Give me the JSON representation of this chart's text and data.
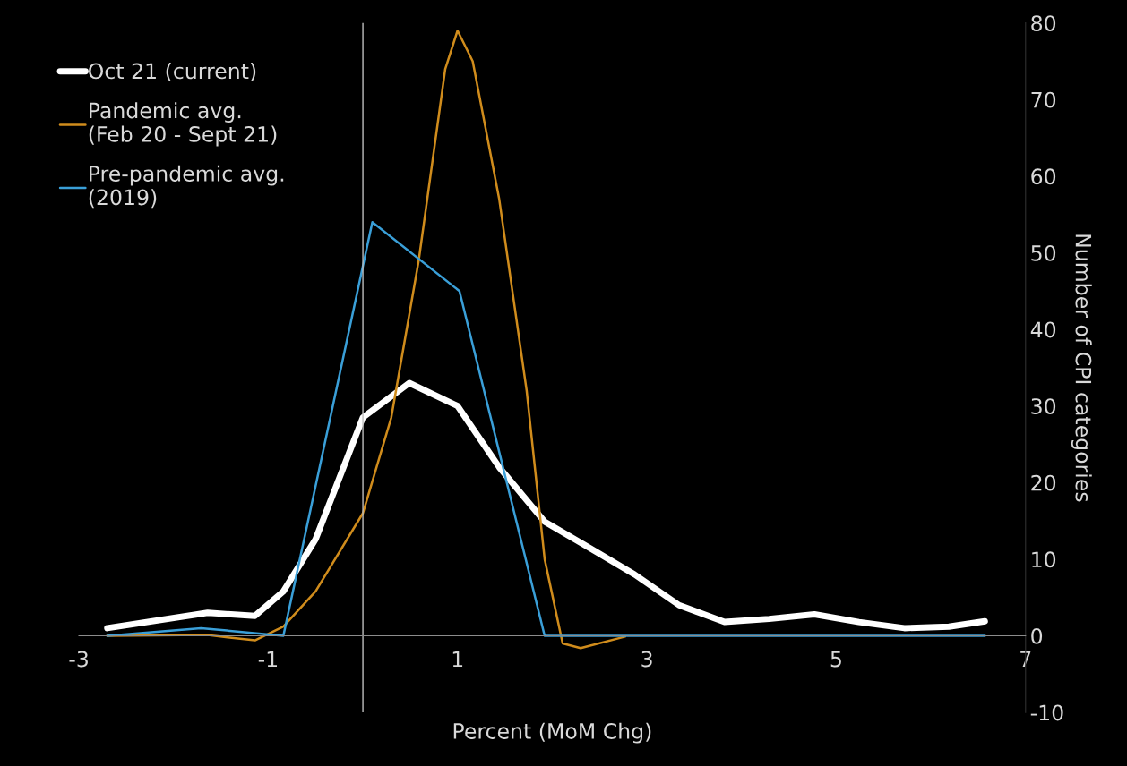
{
  "chart_data": {
    "type": "line",
    "xlabel": "Percent (MoM Chg)",
    "ylabel": "Number of CPI categories",
    "xlim": [
      -3,
      7
    ],
    "xticks": [
      -3,
      -1,
      1,
      3,
      5,
      7
    ],
    "ylim": [
      -10,
      80
    ],
    "yticks": [
      -10,
      0,
      10,
      20,
      30,
      40,
      50,
      60,
      70,
      80
    ],
    "grid": false,
    "legend": "top left",
    "ref_lines": [
      {
        "axis": "x",
        "value": 0,
        "color": "#bfbfbf"
      }
    ],
    "series": [
      {
        "name": "Oct 21 (current)",
        "color": "#ffffff",
        "x": [
          -2.7,
          -1.64,
          -1.14,
          -0.84,
          -0.5,
          0,
          0.49,
          1.0,
          1.44,
          1.92,
          2.39,
          2.87,
          3.34,
          3.82,
          4.29,
          4.77,
          5.24,
          5.72,
          6.19,
          6.57
        ],
        "values": [
          1.0,
          3.0,
          2.6,
          5.8,
          12.6,
          28.5,
          33,
          30,
          22,
          14.9,
          11.5,
          8,
          4,
          1.8,
          2.2,
          2.8,
          1.8,
          1.0,
          1.2,
          1.9
        ]
      },
      {
        "name": "Pandemic avg.\n(Feb 20 - Sept 21)",
        "color": "#d08c1c",
        "x": [
          -2.7,
          -1.64,
          -1.14,
          -0.84,
          -0.5,
          0,
          0.3,
          0.59,
          0.87,
          1.0,
          1.16,
          1.44,
          1.73,
          1.92,
          2.11,
          2.3,
          2.77
        ],
        "values": [
          0,
          0.1,
          -0.6,
          1.2,
          5.8,
          16,
          28.5,
          49,
          74,
          79,
          75,
          57,
          32,
          10,
          -1,
          -1.6,
          -0.1
        ]
      },
      {
        "name": "Pre-pandemic avg.\n(2019)",
        "color": "#3a9fd8",
        "x": [
          -2.7,
          -1.71,
          -0.84,
          0.1,
          1.02,
          1.92,
          6.57
        ],
        "values": [
          0,
          1,
          0,
          54,
          45,
          0,
          0
        ]
      }
    ]
  }
}
